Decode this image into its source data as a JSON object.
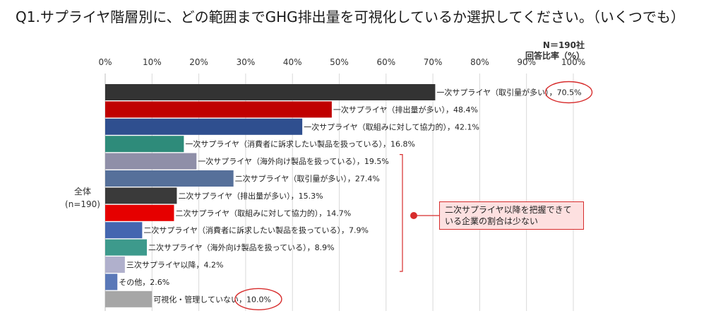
{
  "title": "Q1.サプライヤ階層別に、どの範囲までGHG排出量を可視化しているか選択してください。（いくつでも）",
  "sample_label": "N＝190社",
  "unit_label": "回答比率（%）",
  "group_label_line1": "全体",
  "group_label_line2": "(n=190)",
  "callout_text": "二次サプライヤ以降を把握できている企業の割合は少ない",
  "colors": {
    "callout_border": "#d72c2c",
    "callout_fill": "#fde0e0",
    "highlight_ring": "#d72c2c"
  },
  "chart_data": {
    "type": "bar",
    "orientation": "horizontal",
    "xlim": [
      0,
      100
    ],
    "ticks": [
      "0%",
      "10%",
      "20%",
      "30%",
      "40%",
      "50%",
      "60%",
      "70%",
      "80%",
      "90%",
      "100%"
    ],
    "grid": true,
    "categories": [
      "一次サプライヤ（取引量が多い）",
      "一次サプライヤ（排出量が多い）",
      "一次サプライヤ（取組みに対して協力的）",
      "一次サプライヤ（消費者に訴求したい製品を扱っている）",
      "一次サプライヤ（海外向け製品を扱っている）",
      "二次サプライヤ（取引量が多い）",
      "二次サプライヤ（排出量が多い）",
      "二次サプライヤ（取組みに対して協力的）",
      "二次サプライヤ（消費者に訴求したい製品を扱っている）",
      "二次サプライヤ（海外向け製品を扱っている）",
      "三次サプライヤ以降",
      "その他",
      "可視化・管理していない"
    ],
    "values": [
      70.5,
      48.4,
      42.1,
      16.8,
      19.5,
      27.4,
      15.3,
      14.7,
      7.9,
      8.9,
      4.2,
      2.6,
      10.0
    ],
    "value_labels": [
      "70.5%",
      "48.4%",
      "42.1%",
      "16.8%",
      "19.5%",
      "27.4%",
      "15.3%",
      "14.7%",
      "7.9%",
      "8.9%",
      "4.2%",
      "2.6%",
      "10.0%"
    ],
    "colors": [
      "#333333",
      "#c00000",
      "#2f4f8f",
      "#2e8b7a",
      "#8f8fa8",
      "#56709a",
      "#3a3a3a",
      "#e60000",
      "#4466b0",
      "#3d9a8c",
      "#b0b0cc",
      "#5a78b8",
      "#a6a6a6"
    ],
    "highlighted": [
      0,
      12
    ]
  }
}
